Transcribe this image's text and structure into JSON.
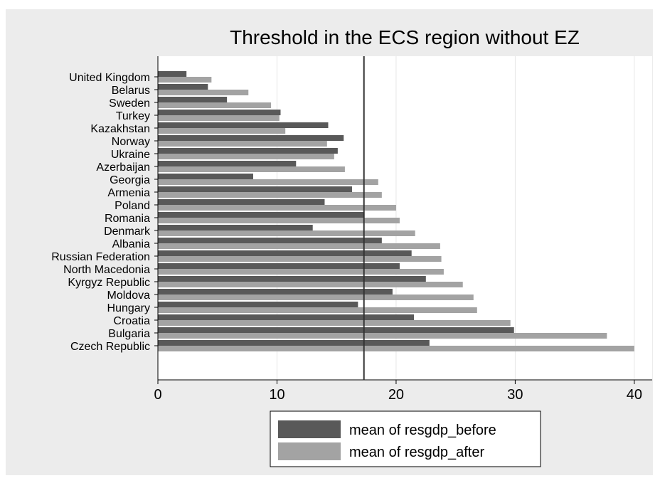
{
  "chart_data": {
    "type": "bar",
    "orientation": "horizontal",
    "title": "Threshold in the ECS region without EZ",
    "xlabel": "",
    "ylabel": "",
    "xlim": [
      0,
      41.5
    ],
    "xticks": [
      0,
      10,
      20,
      30,
      40
    ],
    "grid": true,
    "reference_line": 17.3,
    "legend_position": "bottom-center",
    "categories": [
      "United Kingdom",
      "Belarus",
      "Sweden",
      "Turkey",
      "Kazakhstan",
      "Norway",
      "Ukraine",
      "Azerbaijan",
      "Georgia",
      "Armenia",
      "Poland",
      "Romania",
      "Denmark",
      "Albania",
      "Russian Federation",
      "North Macedonia",
      "Kyrgyz Republic",
      "Moldova",
      "Hungary",
      "Croatia",
      "Bulgaria",
      "Czech Republic"
    ],
    "series": [
      {
        "name": "mean of resgdp_before",
        "color": "#595959",
        "values": [
          2.4,
          4.2,
          5.8,
          10.3,
          14.3,
          15.6,
          15.1,
          11.6,
          8.0,
          16.3,
          14.0,
          17.3,
          13.0,
          18.8,
          21.3,
          20.3,
          22.5,
          19.7,
          16.8,
          21.5,
          29.9,
          22.8
        ]
      },
      {
        "name": "mean of resgdp_after",
        "color": "#a3a3a3",
        "values": [
          4.5,
          7.6,
          9.5,
          10.2,
          10.7,
          14.2,
          14.8,
          15.7,
          18.5,
          18.8,
          20.0,
          20.3,
          21.6,
          23.7,
          23.8,
          24.0,
          25.6,
          26.5,
          26.8,
          29.6,
          37.7,
          40.0
        ]
      }
    ]
  }
}
